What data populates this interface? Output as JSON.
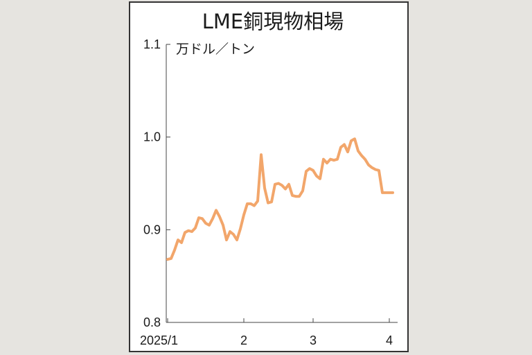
{
  "chart_data": {
    "type": "line",
    "title": "LME銅現物相場",
    "unit_label": "万ドル／トン",
    "ylim": [
      0.8,
      1.1
    ],
    "yticks": [
      {
        "value": 0.8,
        "label": "0.8"
      },
      {
        "value": 0.9,
        "label": "0.9"
      },
      {
        "value": 1.0,
        "label": "1.0"
      },
      {
        "value": 1.1,
        "label": "1.1"
      }
    ],
    "xlim": [
      0,
      66
    ],
    "xticks": [
      {
        "value": 0,
        "label": "2025/1"
      },
      {
        "value": 22,
        "label": "2"
      },
      {
        "value": 42,
        "label": "3"
      },
      {
        "value": 64,
        "label": "4"
      }
    ],
    "grid": false,
    "line_color": "#f2a66b",
    "series": [
      {
        "x": [
          0,
          1,
          2,
          3,
          4,
          5,
          6,
          7,
          8,
          9,
          10,
          11,
          12,
          13,
          14,
          15,
          16,
          17,
          18,
          19,
          20,
          21,
          22,
          23,
          24,
          25,
          26,
          27,
          28,
          29,
          30,
          31,
          32,
          33,
          34,
          35,
          36,
          37,
          38,
          39,
          40,
          41,
          42,
          43,
          44,
          45,
          46,
          47,
          48,
          49,
          50,
          51,
          52,
          53,
          54,
          55,
          56,
          57,
          58,
          59,
          60,
          61,
          62,
          63,
          64,
          65
        ],
        "values": [
          0.868,
          0.869,
          0.878,
          0.889,
          0.886,
          0.897,
          0.899,
          0.898,
          0.902,
          0.913,
          0.912,
          0.907,
          0.905,
          0.912,
          0.921,
          0.914,
          0.905,
          0.889,
          0.898,
          0.895,
          0.889,
          0.901,
          0.916,
          0.928,
          0.928,
          0.926,
          0.931,
          0.981,
          0.945,
          0.929,
          0.93,
          0.949,
          0.95,
          0.948,
          0.944,
          0.949,
          0.937,
          0.936,
          0.936,
          0.942,
          0.963,
          0.966,
          0.964,
          0.958,
          0.955,
          0.976,
          0.972,
          0.976,
          0.975,
          0.976,
          0.989,
          0.992,
          0.984,
          0.996,
          0.998,
          0.985,
          0.98,
          0.976,
          0.97,
          0.967,
          0.965,
          0.964,
          0.94,
          0.94,
          0.94,
          0.94
        ]
      }
    ]
  }
}
